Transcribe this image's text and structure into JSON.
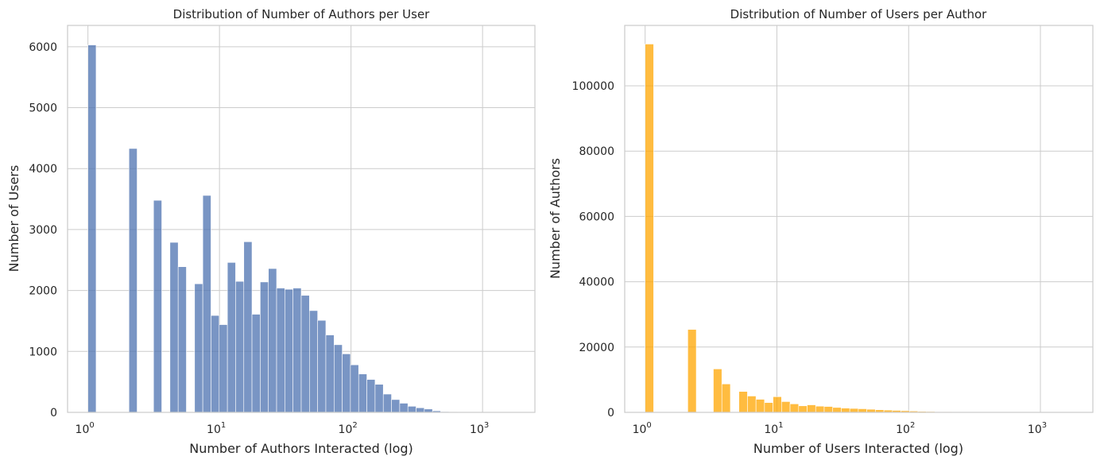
{
  "chart_data": [
    {
      "type": "bar",
      "title": "Distribution of Number of Authors per User",
      "xlabel": "Number of Authors Interacted (log)",
      "ylabel": "Number of Users",
      "xscale": "log",
      "xlim": [
        0.7,
        2500
      ],
      "ylim": [
        0,
        6350
      ],
      "yticks": [
        0,
        1000,
        2000,
        3000,
        4000,
        5000,
        6000
      ],
      "xticks": [
        {
          "value": 1,
          "base": "10",
          "exp": "0"
        },
        {
          "value": 10,
          "base": "10",
          "exp": "1"
        },
        {
          "value": 100,
          "base": "10",
          "exp": "2"
        },
        {
          "value": 1000,
          "base": "10",
          "exp": "3"
        }
      ],
      "grid": true,
      "color": "#4c72b0",
      "bar_edges": [
        1,
        1.154,
        1.333,
        1.538,
        1.776,
        2.05,
        2.366,
        2.732,
        3.154,
        3.641,
        4.203,
        4.853,
        5.602,
        6.468,
        7.467,
        8.62,
        9.951,
        11.49,
        13.26,
        15.31,
        17.67,
        20.4,
        23.55,
        27.19,
        31.39,
        36.24,
        41.84,
        48.3,
        55.76,
        64.37,
        74.32,
        85.79,
        99.05,
        114.3,
        132,
        152.4,
        175.9,
        203.1,
        234.5,
        270.7,
        312.5,
        360.7,
        416.5,
        480.8,
        555,
        640.8,
        739.8,
        854,
        985.9,
        1138,
        1314,
        1517,
        1751
      ],
      "values": [
        6030,
        0,
        0,
        0,
        0,
        4330,
        0,
        0,
        3480,
        0,
        2790,
        2390,
        0,
        2110,
        3560,
        1590,
        1440,
        2460,
        2150,
        2800,
        1610,
        2140,
        2360,
        2040,
        2020,
        2040,
        1920,
        1670,
        1510,
        1270,
        1110,
        960,
        780,
        630,
        540,
        460,
        300,
        210,
        150,
        100,
        75,
        55,
        25,
        12,
        8,
        5,
        4,
        3,
        2,
        1,
        1,
        1
      ]
    },
    {
      "type": "bar",
      "title": "Distribution of Number of Users per Author",
      "xlabel": "Number of Users Interacted (log)",
      "ylabel": "Number of Authors",
      "xscale": "log",
      "xlim": [
        0.7,
        2500
      ],
      "ylim": [
        0,
        118500
      ],
      "yticks": [
        0,
        20000,
        40000,
        60000,
        80000,
        100000
      ],
      "xticks": [
        {
          "value": 1,
          "base": "10",
          "exp": "0"
        },
        {
          "value": 10,
          "base": "10",
          "exp": "1"
        },
        {
          "value": 100,
          "base": "10",
          "exp": "2"
        },
        {
          "value": 1000,
          "base": "10",
          "exp": "3"
        }
      ],
      "grid": true,
      "color": "#ffa500",
      "bar_edges": [
        1,
        1.161,
        1.347,
        1.564,
        1.815,
        2.107,
        2.445,
        2.838,
        3.294,
        3.823,
        4.437,
        5.151,
        5.978,
        6.939,
        8.054,
        9.348,
        10.85,
        12.59,
        14.62,
        16.97,
        19.69,
        22.86,
        26.53,
        30.79,
        35.74,
        41.48,
        48.15,
        55.89,
        64.87,
        75.29,
        87.39,
        101.4,
        117.7,
        136.6,
        158.6,
        184.1,
        213.7,
        248,
        287.9,
        334.1,
        387.8,
        450.2,
        522.5,
        606.4,
        703.9,
        817,
        948.3,
        1101,
        1278,
        1483,
        1721,
        1997,
        2318
      ],
      "values": [
        112800,
        0,
        0,
        0,
        0,
        25400,
        0,
        0,
        13300,
        8700,
        0,
        6400,
        5000,
        4000,
        3000,
        4800,
        3300,
        2600,
        2000,
        2300,
        1900,
        1800,
        1500,
        1300,
        1200,
        1100,
        950,
        800,
        700,
        600,
        500,
        400,
        300,
        250,
        200,
        150,
        120,
        100,
        80,
        60,
        50,
        40,
        30,
        25,
        20,
        15,
        12,
        10,
        8,
        6,
        5,
        4
      ]
    }
  ]
}
